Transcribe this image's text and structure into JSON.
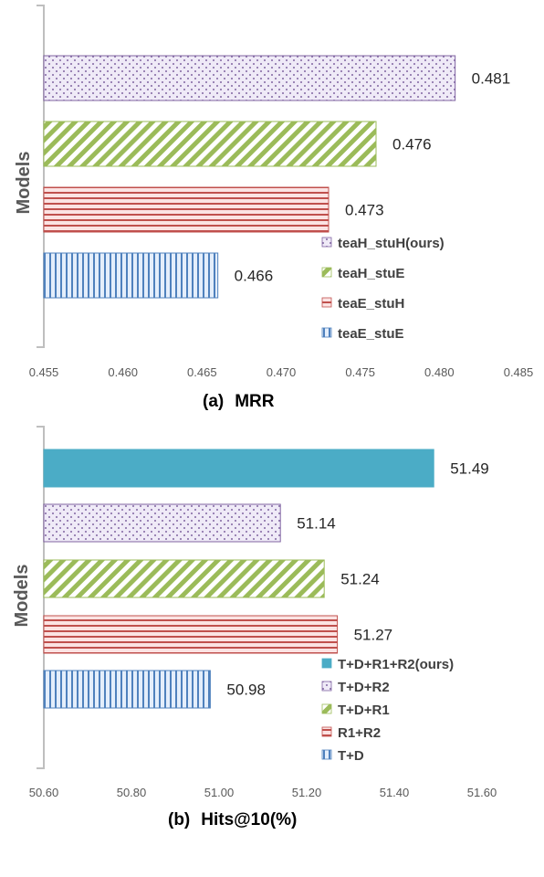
{
  "chart_data": [
    {
      "type": "bar",
      "orientation": "horizontal",
      "caption_prefix": "(a)",
      "caption": "MRR",
      "ylabel": "Models",
      "xlim": [
        0.455,
        0.485
      ],
      "xticks": [
        "0.455",
        "0.460",
        "0.465",
        "0.470",
        "0.475",
        "0.480",
        "0.485"
      ],
      "categories": [
        "teaH_stuH(ours)",
        "teaH_stuE",
        "teaE_stuH",
        "teaE_stuE"
      ],
      "values": [
        0.481,
        0.476,
        0.473,
        0.466
      ],
      "value_labels": [
        "0.481",
        "0.476",
        "0.473",
        "0.466"
      ],
      "patterns": [
        "dots",
        "diag",
        "hlines",
        "vlines"
      ],
      "colors": [
        "#b9a6d9",
        "#a8d46a",
        "#e57b7b",
        "#6f9fdb"
      ],
      "legend": [
        "teaH_stuH(ours)",
        "teaH_stuE",
        "teaE_stuH",
        "teaE_stuE"
      ],
      "legend_position": "bottom-right",
      "grid": false
    },
    {
      "type": "bar",
      "orientation": "horizontal",
      "caption_prefix": "(b)",
      "caption": "Hits@10(%)",
      "ylabel": "Models",
      "xlim": [
        50.6,
        51.6
      ],
      "xticks": [
        "50.60",
        "50.80",
        "51.00",
        "51.20",
        "51.40",
        "51.60"
      ],
      "categories": [
        "T+D+R1+R2(ours)",
        "T+D+R2",
        "T+D+R1",
        "R1+R2",
        "T+D"
      ],
      "values": [
        51.49,
        51.14,
        51.24,
        51.27,
        50.98
      ],
      "value_labels": [
        "51.49",
        "51.14",
        "51.24",
        "51.27",
        "50.98"
      ],
      "patterns": [
        "solid",
        "dots",
        "diag",
        "hlines",
        "vlines"
      ],
      "colors": [
        "#4bacc6",
        "#b9a6d9",
        "#a8d46a",
        "#e57b7b",
        "#6f9fdb"
      ],
      "legend": [
        "T+D+R1+R2(ours)",
        "T+D+R2",
        "T+D+R1",
        "R1+R2",
        "T+D"
      ],
      "legend_position": "bottom-right",
      "grid": false
    }
  ]
}
